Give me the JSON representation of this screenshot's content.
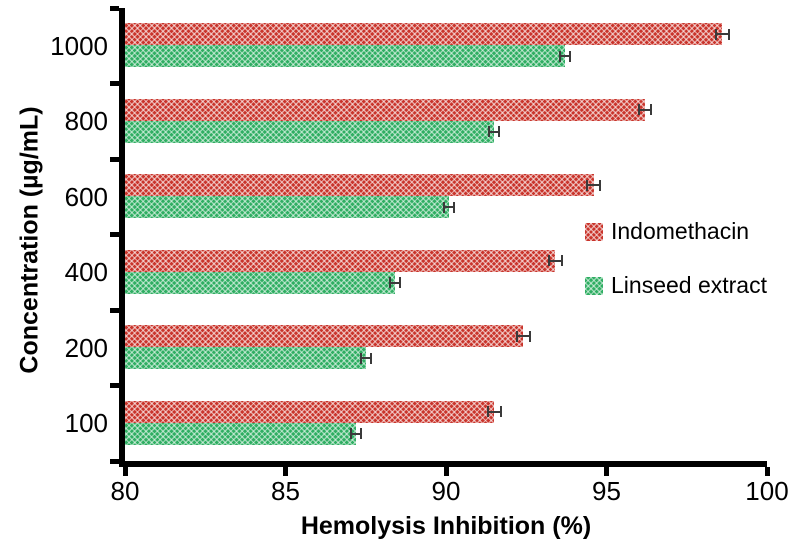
{
  "chart_data": {
    "type": "bar",
    "orientation": "horizontal",
    "title": "",
    "xlabel": "Hemolysis Inhibition (%)",
    "ylabel": "Concentration (µg/mL)",
    "xlim": [
      80,
      100
    ],
    "xticks": [
      80,
      85,
      90,
      95,
      100
    ],
    "categories": [
      100,
      200,
      400,
      600,
      800,
      1000
    ],
    "series": [
      {
        "name": "Indomethacin",
        "color": "#c9342b",
        "pattern": "diagonal-crosshatch",
        "values": [
          91.5,
          92.4,
          93.4,
          94.6,
          96.2,
          98.6
        ],
        "errors": [
          0.2,
          0.2,
          0.2,
          0.2,
          0.2,
          0.2
        ]
      },
      {
        "name": "Linseed extract",
        "color": "#2fae62",
        "pattern": "diagonal-crosshatch",
        "values": [
          87.2,
          87.5,
          88.4,
          90.1,
          91.5,
          93.7
        ],
        "errors": [
          0.15,
          0.15,
          0.15,
          0.15,
          0.15,
          0.15
        ]
      }
    ],
    "grid": false,
    "legend_position": "right-middle",
    "error_bar_color": "#3a3a3a"
  }
}
